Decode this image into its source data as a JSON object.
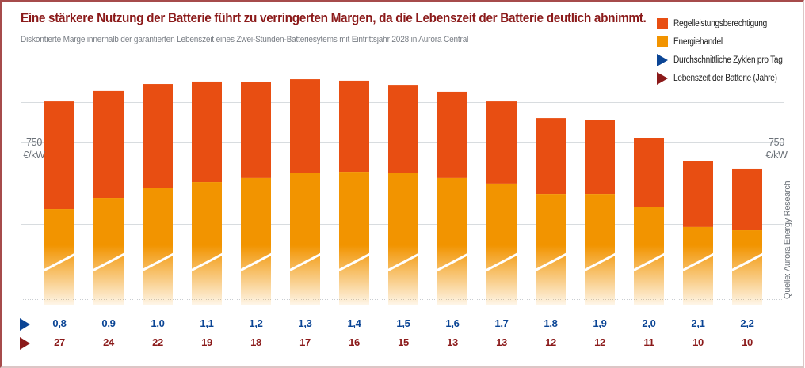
{
  "title": "Eine stärkere Nutzung der Batterie führt zu verringerten Margen, da die Lebenszeit der Batterie deutlich abnimmt.",
  "subtitle": "Diskontierte Marge innerhalb der garantierten Lebenszeit eines Zwei-Stunden-Batteriesytems mit Eintrittsjahr 2028 in Aurora Central",
  "source": "Quelle: Aurora Energy Research",
  "colors": {
    "regelleistung": "#e84e12",
    "energiehandel": "#f29400",
    "cycles": "#0b4595",
    "lifetime": "#8b1a1a",
    "title": "#8b1a1a",
    "grid": "#d8dcdf"
  },
  "legend": {
    "items": [
      {
        "label": "Regelleistungsberechtigung",
        "marker": "square",
        "color": "#e84e12"
      },
      {
        "label": "Energiehandel",
        "marker": "square",
        "color": "#f29400"
      },
      {
        "label": "Durchschnittliche Zyklen pro Tag",
        "marker": "triangle",
        "color": "#0b4595"
      },
      {
        "label": "Lebenszeit der Batterie (Jahre)",
        "marker": "triangle",
        "color": "#8b1a1a"
      }
    ]
  },
  "chart_data": {
    "type": "bar",
    "stacked": true,
    "title": "Eine stärkere Nutzung der Batterie führt zu verringerten Margen, da die Lebenszeit der Batterie deutlich abnimmt.",
    "ylabel": "€/kW",
    "ylim": [
      0,
      1250
    ],
    "y_gridlines": [
      250,
      500,
      750,
      1000
    ],
    "y_labeled_tick": {
      "value": 750,
      "label": "750",
      "unit": "€/kW"
    },
    "axis_break": true,
    "values_are_estimates": true,
    "estimation_note": "Only the 750 €/kW tick is labeled; other gridlines are assumed to be 250 €/kW apart on a linear scale from 0. Segment values are read from pixel positions and are approximate.",
    "categories": [
      "0,8",
      "0,9",
      "1,0",
      "1,1",
      "1,2",
      "1,3",
      "1,4",
      "1,5",
      "1,6",
      "1,7",
      "1,8",
      "1,9",
      "2,0",
      "2,1",
      "2,2"
    ],
    "series": [
      {
        "name": "Energiehandel",
        "values": [
          342,
          410,
          473,
          507,
          532,
          561,
          570,
          561,
          532,
          498,
          434,
          434,
          352,
          231,
          211
        ]
      },
      {
        "name": "Regelleistungsberechtigung",
        "values": [
          660,
          656,
          636,
          617,
          587,
          577,
          559,
          538,
          529,
          504,
          466,
          452,
          427,
          403,
          379
        ]
      }
    ],
    "rows": [
      {
        "name": "Durchschnittliche Zyklen pro Tag",
        "values": [
          "0,8",
          "0,9",
          "1,0",
          "1,1",
          "1,2",
          "1,3",
          "1,4",
          "1,5",
          "1,6",
          "1,7",
          "1,8",
          "1,9",
          "2,0",
          "2,1",
          "2,2"
        ]
      },
      {
        "name": "Lebenszeit der Batterie (Jahre)",
        "values": [
          "27",
          "24",
          "22",
          "19",
          "18",
          "17",
          "16",
          "15",
          "13",
          "13",
          "12",
          "12",
          "11",
          "10",
          "10"
        ]
      }
    ]
  }
}
